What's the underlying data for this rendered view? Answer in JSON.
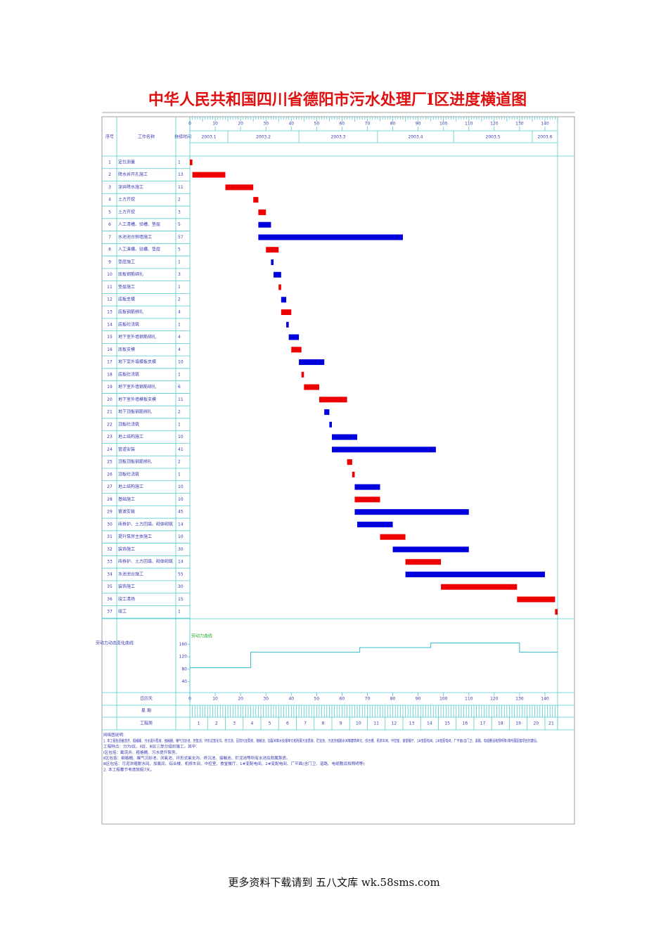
{
  "header": {
    "title": "中华人民共和国四川省德阳市污水处理厂Ⅰ区进度横道图"
  },
  "table": {
    "columns": [
      "序号",
      "工作名称",
      "持续时间"
    ]
  },
  "chart_data": {
    "type": "gantt",
    "xlim": [
      0,
      145
    ],
    "xticks": [
      0,
      10,
      20,
      30,
      40,
      50,
      60,
      70,
      80,
      90,
      100,
      110,
      120,
      130,
      140
    ],
    "months": [
      {
        "label": "2003.1",
        "start": 0
      },
      {
        "label": "2003.2",
        "start": 15
      },
      {
        "label": "2003.3",
        "start": 43
      },
      {
        "label": "2003.4",
        "start": 74
      },
      {
        "label": "2003.5",
        "start": 104
      },
      {
        "label": "2003.6",
        "start": 135
      }
    ],
    "tasks": [
      {
        "id": 1,
        "name": "定位测量",
        "duration": 1,
        "start": 0,
        "color": "#ee0000"
      },
      {
        "id": 2,
        "name": "降水井开孔施工",
        "duration": 13,
        "start": 1,
        "color": "#ee0000"
      },
      {
        "id": 3,
        "name": "深井降水施工",
        "duration": 11,
        "start": 14,
        "color": "#ee0000"
      },
      {
        "id": 4,
        "name": "土方开挖",
        "duration": 2,
        "start": 25,
        "color": "#ee0000"
      },
      {
        "id": 5,
        "name": "土方开挖",
        "duration": 3,
        "start": 27,
        "color": "#ee0000"
      },
      {
        "id": 6,
        "name": "人工清槽、验槽、垫层",
        "duration": 5,
        "start": 27,
        "color": "#0000dd"
      },
      {
        "id": 7,
        "name": "水池池台侧墙施工",
        "duration": 57,
        "start": 27,
        "color": "#0000dd"
      },
      {
        "id": 8,
        "name": "人工清槽、验槽、垫层",
        "duration": 5,
        "start": 30,
        "color": "#ee0000"
      },
      {
        "id": 9,
        "name": "垫层施工",
        "duration": 1,
        "start": 32,
        "color": "#0000dd"
      },
      {
        "id": 10,
        "name": "底板钢筋绑扎",
        "duration": 3,
        "start": 33,
        "color": "#0000dd"
      },
      {
        "id": 11,
        "name": "垫层施工",
        "duration": 1,
        "start": 35,
        "color": "#ee0000"
      },
      {
        "id": 12,
        "name": "底板支模",
        "duration": 2,
        "start": 36,
        "color": "#0000dd"
      },
      {
        "id": 13,
        "name": "底板钢筋绑扎",
        "duration": 4,
        "start": 36,
        "color": "#ee0000"
      },
      {
        "id": 14,
        "name": "底板砼浇筑",
        "duration": 1,
        "start": 38,
        "color": "#0000dd"
      },
      {
        "id": 15,
        "name": "地下室外墙钢筋绑扎",
        "duration": 4,
        "start": 39,
        "color": "#0000dd"
      },
      {
        "id": 16,
        "name": "底板支模",
        "duration": 4,
        "start": 40,
        "color": "#ee0000"
      },
      {
        "id": 17,
        "name": "地下室外墙模板支模",
        "duration": 10,
        "start": 43,
        "color": "#0000dd"
      },
      {
        "id": 18,
        "name": "底板砼浇筑",
        "duration": 1,
        "start": 44,
        "color": "#ee0000"
      },
      {
        "id": 19,
        "name": "地下室外墙钢筋绑扎",
        "duration": 6,
        "start": 45,
        "color": "#ee0000"
      },
      {
        "id": 20,
        "name": "地下室外墙模板支模",
        "duration": 11,
        "start": 51,
        "color": "#ee0000"
      },
      {
        "id": 21,
        "name": "地下顶板钢筋绑扎",
        "duration": 2,
        "start": 53,
        "color": "#0000dd"
      },
      {
        "id": 22,
        "name": "顶板砼浇筑",
        "duration": 1,
        "start": 55,
        "color": "#0000dd"
      },
      {
        "id": 23,
        "name": "地上结构施工",
        "duration": 10,
        "start": 56,
        "color": "#0000dd"
      },
      {
        "id": 24,
        "name": "管道安装",
        "duration": 41,
        "start": 56,
        "color": "#0000dd"
      },
      {
        "id": 25,
        "name": "顶板顶板钢筋绑扎",
        "duration": 2,
        "start": 62,
        "color": "#ee0000"
      },
      {
        "id": 26,
        "name": "顶板砼浇筑",
        "duration": 1,
        "start": 64,
        "color": "#ee0000"
      },
      {
        "id": 27,
        "name": "地上结构施工",
        "duration": 10,
        "start": 65,
        "color": "#0000dd"
      },
      {
        "id": 28,
        "name": "基础施工",
        "duration": 10,
        "start": 65,
        "color": "#ee0000"
      },
      {
        "id": 29,
        "name": "管道安装",
        "duration": 45,
        "start": 65,
        "color": "#0000dd"
      },
      {
        "id": 30,
        "name": "砖券护、土方回填、砌体砌筑",
        "duration": 14,
        "start": 66,
        "color": "#0000dd"
      },
      {
        "id": 31,
        "name": "提升泵房主体施工",
        "duration": 10,
        "start": 75,
        "color": "#ee0000"
      },
      {
        "id": 32,
        "name": "装饰施工",
        "duration": 30,
        "start": 80,
        "color": "#0000dd"
      },
      {
        "id": 33,
        "name": "砖券护、土方回填、砌体砌筑",
        "duration": 14,
        "start": 85,
        "color": "#ee0000"
      },
      {
        "id": 34,
        "name": "水池池台施工",
        "duration": 55,
        "start": 85,
        "color": "#0000dd"
      },
      {
        "id": 35,
        "name": "装饰施工",
        "duration": 30,
        "start": 99,
        "color": "#ee0000"
      },
      {
        "id": 36,
        "name": "竣工清场",
        "duration": 15,
        "start": 129,
        "color": "#ee0000"
      },
      {
        "id": 37,
        "name": "竣工",
        "duration": 1,
        "start": 144,
        "color": "#ee0000"
      }
    ],
    "labor": {
      "title": "劳动力动态变化曲线",
      "legend": "劳动力曲线",
      "color": "#33bbcc",
      "x": [
        0,
        24,
        67,
        95,
        130,
        145
      ],
      "values": [
        85,
        135,
        150,
        165,
        135,
        135
      ],
      "ylim": [
        0,
        200
      ],
      "yticks": [
        40,
        80,
        120,
        160
      ]
    },
    "rows": {
      "calendar": "日历天",
      "weekday": "星 期",
      "week": "工程周"
    },
    "weeks": [
      1,
      2,
      3,
      4,
      5,
      6,
      7,
      8,
      9,
      10,
      11,
      12,
      13,
      14,
      15,
      16,
      17,
      18,
      19,
      20,
      21
    ]
  },
  "notes": [
    "网络图说明:",
    "1. 本工程包括截流井、粗格栅、污水提升泵房、细格栅、曝气沉砂池、厌氧池、环形式氧化沟、终沉池、回流污泥泵房、接触池、加氯间等水处理单元和附属污泥泵房、贮泥池、污泥浓缩脱水间等建筑单元、综合楼、机修车间、中控室、食堂餐厅、1#变配电间、2#变配电间、厂平面(含门卫、道路、电缆敷设和照明等)等所属配套项目的建设。",
    "工程特点：分为Ⅰ区、Ⅱ区、Ⅲ区三部分组织施工。其中：",
    "Ⅰ区包括：截流井、粗格栅、污水提升泵房。",
    "Ⅱ区包括：细格栅、曝气沉砂池、厌氧池、环形式氧化沟、终沉池、接触池、贮泥池等所有水池及附属泵房。",
    "Ⅲ区包括：污泥浓缩脱水间、加氯间、综合楼、机修车间、中控室、食堂餐厅、1#变配电间、2#变配电间、厂平面(含门卫、道路、电缆敷设和照明等)",
    "2. 本工程春节考虑放假7天。"
  ],
  "footer": "更多资料下载请到 五八文库 wk.58sms.com"
}
